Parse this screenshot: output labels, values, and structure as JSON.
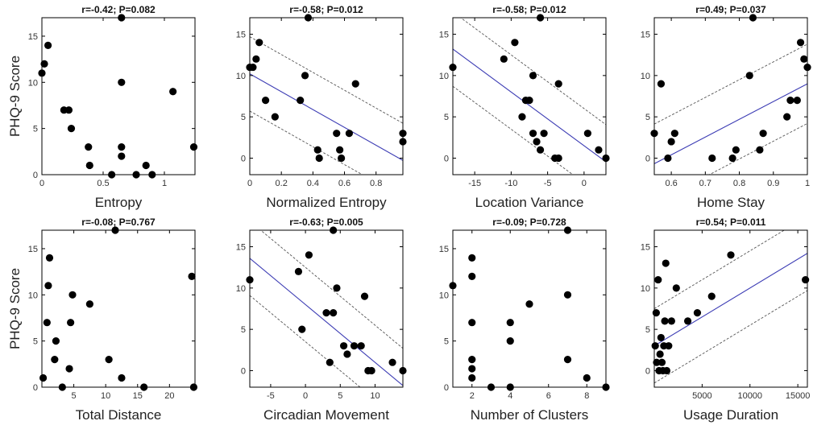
{
  "figure": {
    "ylabel": "PHQ-9 Score"
  },
  "colors": {
    "points": "#000000",
    "fit_line": "#3c3cb4",
    "band": "#555555",
    "axes": "#000000"
  },
  "chart_data": [
    {
      "type": "scatter",
      "title": "r=-0.42; P=0.082",
      "xlabel": "Entropy",
      "ylabel": "PHQ-9 Score",
      "xlim": [
        0,
        1.25
      ],
      "ylim": [
        0,
        17
      ],
      "xticks": [
        0,
        0.5,
        1
      ],
      "xticklabels": [
        "0",
        "0.5",
        "1"
      ],
      "yticks": [
        0,
        5,
        10,
        15
      ],
      "fit": null,
      "points": [
        [
          0.0,
          11
        ],
        [
          0.02,
          12
        ],
        [
          0.05,
          14
        ],
        [
          0.18,
          7
        ],
        [
          0.22,
          7
        ],
        [
          0.24,
          5
        ],
        [
          0.38,
          3
        ],
        [
          0.39,
          1
        ],
        [
          0.57,
          0
        ],
        [
          0.65,
          17
        ],
        [
          0.65,
          10
        ],
        [
          0.65,
          3
        ],
        [
          0.65,
          2
        ],
        [
          0.77,
          0
        ],
        [
          0.85,
          1
        ],
        [
          0.9,
          0
        ],
        [
          1.07,
          9
        ],
        [
          1.24,
          3
        ]
      ]
    },
    {
      "type": "scatter",
      "title": "r=-0.58; P=0.012",
      "xlabel": "Normalized Entropy",
      "ylabel": "",
      "xlim": [
        0,
        0.97
      ],
      "ylim": [
        -2,
        17
      ],
      "xticks": [
        0,
        0.2,
        0.4,
        0.6,
        0.8
      ],
      "xticklabels": [
        "0",
        "0.2",
        "0.4",
        "0.6",
        "0.8"
      ],
      "yticks": [
        0,
        5,
        10,
        15
      ],
      "fit": {
        "intercept": 10.2,
        "slope": -10.8,
        "band": 4.5
      },
      "points": [
        [
          0.0,
          11
        ],
        [
          0.02,
          11
        ],
        [
          0.04,
          12
        ],
        [
          0.06,
          14
        ],
        [
          0.1,
          7
        ],
        [
          0.16,
          5
        ],
        [
          0.32,
          7
        ],
        [
          0.35,
          10
        ],
        [
          0.37,
          17
        ],
        [
          0.43,
          1
        ],
        [
          0.44,
          0
        ],
        [
          0.55,
          3
        ],
        [
          0.57,
          1
        ],
        [
          0.58,
          0
        ],
        [
          0.63,
          3
        ],
        [
          0.67,
          9
        ],
        [
          0.97,
          3
        ],
        [
          0.97,
          2
        ]
      ]
    },
    {
      "type": "scatter",
      "title": "r=-0.58; P=0.012",
      "xlabel": "Location Variance",
      "ylabel": "",
      "xlim": [
        -18,
        3
      ],
      "ylim": [
        -2,
        17
      ],
      "xticks": [
        -15,
        -10,
        -5,
        0
      ],
      "xticklabels": [
        "-15",
        "-10",
        "-5",
        "0"
      ],
      "yticks": [
        0,
        5,
        10,
        15
      ],
      "fit": {
        "intercept": 1.5,
        "slope": -0.65,
        "band": 4.5
      },
      "points": [
        [
          -18,
          11
        ],
        [
          -11,
          12
        ],
        [
          -9.5,
          14
        ],
        [
          -8.5,
          5
        ],
        [
          -8,
          7
        ],
        [
          -7.5,
          7
        ],
        [
          -7,
          10
        ],
        [
          -7,
          3
        ],
        [
          -6.5,
          2
        ],
        [
          -6,
          1
        ],
        [
          -6,
          17
        ],
        [
          -5.5,
          3
        ],
        [
          -4,
          0
        ],
        [
          -3.5,
          9
        ],
        [
          -3.5,
          0
        ],
        [
          0.5,
          3
        ],
        [
          2,
          1
        ],
        [
          3,
          0
        ]
      ]
    },
    {
      "type": "scatter",
      "title": "r=0.49; P=0.037",
      "xlabel": "Home Stay",
      "ylabel": "",
      "xlim": [
        0.55,
        1.0
      ],
      "ylim": [
        -2,
        17
      ],
      "xticks": [
        0.6,
        0.7,
        0.8,
        0.9,
        1
      ],
      "xticklabels": [
        "0.6",
        "0.7",
        "0.8",
        "0.9",
        "1"
      ],
      "yticks": [
        0,
        5,
        10,
        15
      ],
      "fit": {
        "intercept": -12.5,
        "slope": 21.5,
        "band": 4.8
      },
      "points": [
        [
          0.55,
          3
        ],
        [
          0.57,
          9
        ],
        [
          0.59,
          0
        ],
        [
          0.6,
          2
        ],
        [
          0.61,
          3
        ],
        [
          0.72,
          0
        ],
        [
          0.78,
          0
        ],
        [
          0.79,
          1
        ],
        [
          0.83,
          10
        ],
        [
          0.84,
          17
        ],
        [
          0.86,
          1
        ],
        [
          0.87,
          3
        ],
        [
          0.94,
          5
        ],
        [
          0.95,
          7
        ],
        [
          0.97,
          7
        ],
        [
          0.98,
          14
        ],
        [
          0.99,
          12
        ],
        [
          1.0,
          11
        ]
      ]
    },
    {
      "type": "scatter",
      "title": "r=-0.08; P=0.767",
      "xlabel": "Total Distance",
      "ylabel": "PHQ-9 Score",
      "xlim": [
        0,
        24
      ],
      "ylim": [
        0,
        17
      ],
      "xticks": [
        5,
        10,
        15,
        20
      ],
      "xticklabels": [
        "5",
        "10",
        "15",
        "20"
      ],
      "yticks": [
        0,
        5,
        10,
        15
      ],
      "fit": null,
      "points": [
        [
          0.2,
          1
        ],
        [
          0.8,
          7
        ],
        [
          1.0,
          11
        ],
        [
          1.2,
          14
        ],
        [
          2.0,
          3
        ],
        [
          2.2,
          5
        ],
        [
          3.2,
          0
        ],
        [
          4.3,
          2
        ],
        [
          4.5,
          7
        ],
        [
          4.8,
          10
        ],
        [
          7.5,
          9
        ],
        [
          10.5,
          3
        ],
        [
          11.5,
          17
        ],
        [
          12.5,
          1
        ],
        [
          16,
          0
        ],
        [
          23.5,
          12
        ],
        [
          23.8,
          0
        ]
      ]
    },
    {
      "type": "scatter",
      "title": "r=-0.63; P=0.005",
      "xlabel": "Circadian Movement",
      "ylabel": "",
      "xlim": [
        -8,
        14
      ],
      "ylim": [
        -2,
        17
      ],
      "xticks": [
        -5,
        0,
        5,
        10
      ],
      "xticklabels": [
        "-5",
        "0",
        "5",
        "10"
      ],
      "yticks": [
        0,
        5,
        10,
        15
      ],
      "fit": {
        "intercept": 8.0,
        "slope": -0.7,
        "band": 4.5
      },
      "points": [
        [
          -8,
          11
        ],
        [
          -1,
          12
        ],
        [
          -0.5,
          5
        ],
        [
          0.5,
          14
        ],
        [
          3,
          7
        ],
        [
          3.5,
          1
        ],
        [
          4,
          7
        ],
        [
          4,
          17
        ],
        [
          4.5,
          10
        ],
        [
          5.5,
          3
        ],
        [
          6,
          2
        ],
        [
          7,
          3
        ],
        [
          8,
          3
        ],
        [
          8.5,
          9
        ],
        [
          9,
          0
        ],
        [
          9.5,
          0
        ],
        [
          12.5,
          1
        ],
        [
          14,
          0
        ]
      ]
    },
    {
      "type": "scatter",
      "title": "r=-0.09; P=0.728",
      "xlabel": "Number of Clusters",
      "ylabel": "",
      "xlim": [
        1,
        9
      ],
      "ylim": [
        0,
        17
      ],
      "xticks": [
        2,
        4,
        6,
        8
      ],
      "xticklabels": [
        "2",
        "4",
        "6",
        "8"
      ],
      "yticks": [
        0,
        5,
        10,
        15
      ],
      "fit": null,
      "points": [
        [
          1,
          11
        ],
        [
          2,
          14
        ],
        [
          2,
          12
        ],
        [
          2,
          7
        ],
        [
          2,
          3
        ],
        [
          2,
          2
        ],
        [
          2,
          1
        ],
        [
          3,
          0
        ],
        [
          4,
          7
        ],
        [
          4,
          5
        ],
        [
          4,
          0
        ],
        [
          5,
          9
        ],
        [
          7,
          17
        ],
        [
          7,
          10
        ],
        [
          7,
          3
        ],
        [
          8,
          1
        ],
        [
          9,
          0
        ]
      ]
    },
    {
      "type": "scatter",
      "title": "r=0.54; P=0.011",
      "xlabel": "Usage Duration",
      "ylabel": "",
      "xlim": [
        0,
        16000
      ],
      "ylim": [
        -2,
        17
      ],
      "xticks": [
        5000,
        10000,
        15000
      ],
      "xticklabels": [
        "5000",
        "10000",
        "15000"
      ],
      "yticks": [
        0,
        5,
        10,
        15
      ],
      "fit": {
        "intercept": 3.0,
        "slope": 0.0007,
        "band": 4.5
      },
      "points": [
        [
          100,
          3
        ],
        [
          200,
          7
        ],
        [
          250,
          1
        ],
        [
          400,
          11
        ],
        [
          500,
          0
        ],
        [
          600,
          2
        ],
        [
          700,
          4
        ],
        [
          800,
          1
        ],
        [
          900,
          0
        ],
        [
          1000,
          3
        ],
        [
          1100,
          6
        ],
        [
          1200,
          13
        ],
        [
          1300,
          0
        ],
        [
          1500,
          3
        ],
        [
          1800,
          6
        ],
        [
          2300,
          10
        ],
        [
          3500,
          6
        ],
        [
          4500,
          7
        ],
        [
          6000,
          9
        ],
        [
          8000,
          14
        ],
        [
          15800,
          11
        ]
      ]
    }
  ]
}
